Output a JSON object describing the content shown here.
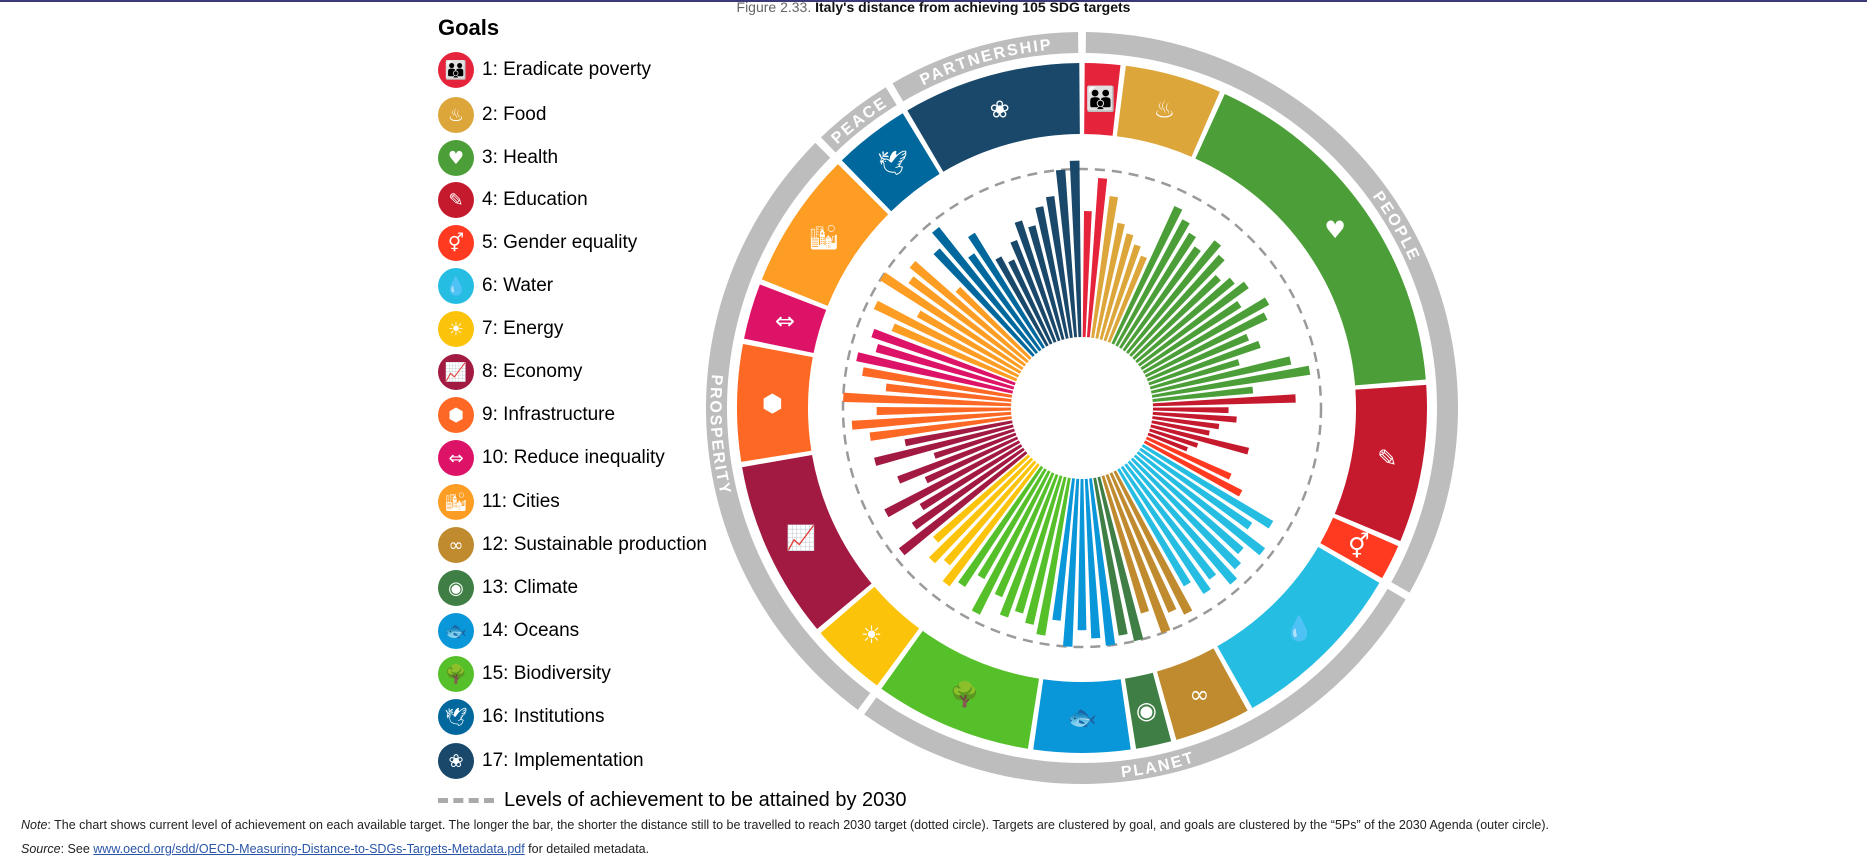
{
  "figure": {
    "number": "Figure 2.33.",
    "title": "Italy's distance from achieving 105 SDG targets"
  },
  "legend": {
    "title": "Goals",
    "levels_label": "Levels of achievement to be attained by 2030"
  },
  "note": {
    "label": "Note",
    "text": ": The chart shows current level of achievement on each available target. The longer the bar, the shorter the distance still to be travelled to reach 2030 target (dotted circle). Targets are clustered by goal, and goals are clustered by the “5Ps” of the 2030 Agenda (outer circle)."
  },
  "source": {
    "label": "Source",
    "prefix": ": See ",
    "link": "www.oecd.org/sdd/OECD-Measuring-Distance-to-SDGs-Targets-Metadata.pdf",
    "suffix": " for detailed metadata."
  },
  "chart_data": {
    "type": "radial-bar",
    "title": "Italy's distance from achieving 105 SDG targets",
    "target_level": 1.0,
    "five_ps": [
      {
        "label": "PEOPLE",
        "goals": [
          1,
          2,
          3,
          4,
          5
        ]
      },
      {
        "label": "PLANET",
        "goals": [
          6,
          12,
          13,
          14,
          15
        ]
      },
      {
        "label": "PROSPERITY",
        "goals": [
          7,
          8,
          9,
          10,
          11
        ]
      },
      {
        "label": "PEACE",
        "goals": [
          16
        ]
      },
      {
        "label": "PARTNERSHIP",
        "goals": [
          17
        ]
      }
    ],
    "goals": [
      {
        "id": 1,
        "label": "1: Eradicate poverty",
        "color": "#e5243b",
        "icon": "family-icon",
        "glyph": "👪",
        "values": [
          0.75,
          0.95
        ]
      },
      {
        "id": 2,
        "label": "2: Food",
        "color": "#dda63a",
        "icon": "bowl-icon",
        "glyph": "♨",
        "values": [
          0.85,
          0.7,
          0.65,
          0.6,
          0.55
        ]
      },
      {
        "id": 3,
        "label": "3: Health",
        "color": "#4c9f38",
        "icon": "heartbeat-icon",
        "glyph": "♥",
        "values": [
          0.9,
          0.85,
          0.8,
          0.75,
          0.85,
          0.8,
          0.7,
          0.75,
          0.8,
          0.7,
          0.85,
          0.8,
          0.65,
          0.7,
          0.55,
          0.85,
          0.95,
          0.6
        ]
      },
      {
        "id": 4,
        "label": "4: Education",
        "color": "#c5192d",
        "icon": "book-icon",
        "glyph": "✎",
        "values": [
          0.85,
          0.45,
          0.5,
          0.4,
          0.35,
          0.6,
          0.3,
          0.25
        ]
      },
      {
        "id": 5,
        "label": "5: Gender equality",
        "color": "#ff3a21",
        "icon": "gender-icon",
        "glyph": "⚥",
        "values": [
          0.55,
          0.65
        ]
      },
      {
        "id": 6,
        "label": "6: Water",
        "color": "#26bde2",
        "icon": "water-icon",
        "glyph": "💧",
        "values": [
          0.9,
          0.8,
          0.95,
          0.85,
          0.9,
          0.95,
          0.85,
          0.9,
          0.8
        ]
      },
      {
        "id": 12,
        "label": "12: Sustainable production",
        "color": "#bf8b2e",
        "icon": "infinity-icon",
        "glyph": "∞",
        "values": [
          0.95,
          0.9,
          1.0,
          0.85
        ]
      },
      {
        "id": 13,
        "label": "13: Climate",
        "color": "#3f7e44",
        "icon": "eye-globe-icon",
        "glyph": "◉",
        "values": [
          1.0,
          0.95
        ]
      },
      {
        "id": 14,
        "label": "14: Oceans",
        "color": "#0a97d9",
        "icon": "fish-icon",
        "glyph": "🐟",
        "values": [
          1.0,
          0.95,
          0.9,
          1.0,
          0.85
        ]
      },
      {
        "id": 15,
        "label": "15: Biodiversity",
        "color": "#56c02b",
        "icon": "tree-icon",
        "glyph": "🌳",
        "values": [
          0.95,
          0.9,
          0.85,
          0.9,
          0.8,
          0.95,
          0.75,
          0.85
        ]
      },
      {
        "id": 7,
        "label": "7: Energy",
        "color": "#fcc30b",
        "icon": "sun-icon",
        "glyph": "☀",
        "values": [
          0.9,
          0.8,
          0.85,
          0.75
        ]
      },
      {
        "id": 8,
        "label": "8: Economy",
        "color": "#a21942",
        "icon": "growth-icon",
        "glyph": "📈",
        "values": [
          0.95,
          0.8,
          0.7,
          0.9,
          0.6,
          0.75,
          0.5,
          0.85,
          0.65
        ]
      },
      {
        "id": 9,
        "label": "9: Infrastructure",
        "color": "#fd6925",
        "icon": "cubes-icon",
        "glyph": "⬢",
        "values": [
          0.85,
          0.95,
          0.8,
          1.0,
          0.75,
          0.9
        ]
      },
      {
        "id": 10,
        "label": "10: Reduce inequality",
        "color": "#dd1367",
        "icon": "arrows-icon",
        "glyph": "⇔",
        "values": [
          0.95,
          0.85,
          0.9
        ]
      },
      {
        "id": 11,
        "label": "11: Cities",
        "color": "#fd9d24",
        "icon": "city-icon",
        "glyph": "🏙",
        "values": [
          0.8,
          0.95,
          0.7,
          1.0,
          0.85,
          0.9,
          0.6
        ]
      },
      {
        "id": 16,
        "label": "16: Institutions",
        "color": "#00689d",
        "icon": "dove-icon",
        "glyph": "🕊",
        "values": [
          0.85,
          0.95,
          0.7,
          0.8
        ]
      },
      {
        "id": 17,
        "label": "17: Implementation",
        "color": "#19486a",
        "icon": "flower-icon",
        "glyph": "❀",
        "values": [
          0.6,
          0.55,
          0.65,
          0.75,
          0.7,
          0.8,
          0.85,
          1.0,
          1.05
        ]
      }
    ]
  }
}
